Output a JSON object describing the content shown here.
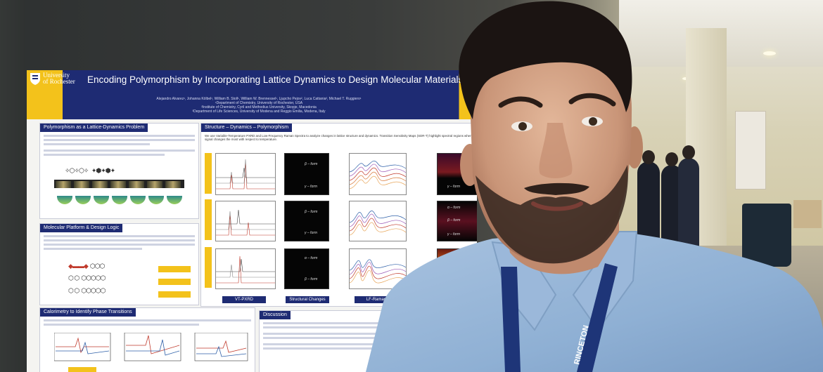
{
  "poster": {
    "university": [
      "University",
      "of Rochester"
    ],
    "title": "Encoding Polymorphism by Incorporating Lattice Dynamics to Design Molecular Materials",
    "authors": "Alejandro Alvarez¹, Johanna Kölbel¹, William B. Stoll¹, William W. Brennessel¹, Ljupcho Pejov², Luca Cattania³, Michael T. Ruggiero¹",
    "affiliations": [
      "¹Department of Chemistry, University of Rochester, USA",
      "²Institute of Chemistry, Cyril and Methodius University, Skopje, Macedonia",
      "³Department of Life Sciences, University of Modena and Reggio Emilia, Modena, Italy"
    ],
    "sections": {
      "lattice": "Polymorphism as a Lattice-Dynamics Problem",
      "molecular": "Molecular Platform & Design Logic",
      "calorimetry": "Calorimetry to Identify Phase Transitions",
      "structure": "Structure – Dynamics – Polymorphism",
      "discussion": "Discussion"
    },
    "structure_intro": "We use Variable-Temperature PXRD and Low-Frequency Raman Spectra to analyze changes in lattice structure and dynamics. Transition Sensitivity Maps (SDR-T) highlight spectral regions where signal changes the most with respect to temperature.",
    "form_labels": {
      "beta": "β – form",
      "gamma": "γ – form",
      "alpha": "α – form"
    },
    "footer_labels": {
      "pxrd": "VT-PXRD",
      "structural": "Structural Changes",
      "raman": "LF-Raman"
    }
  }
}
